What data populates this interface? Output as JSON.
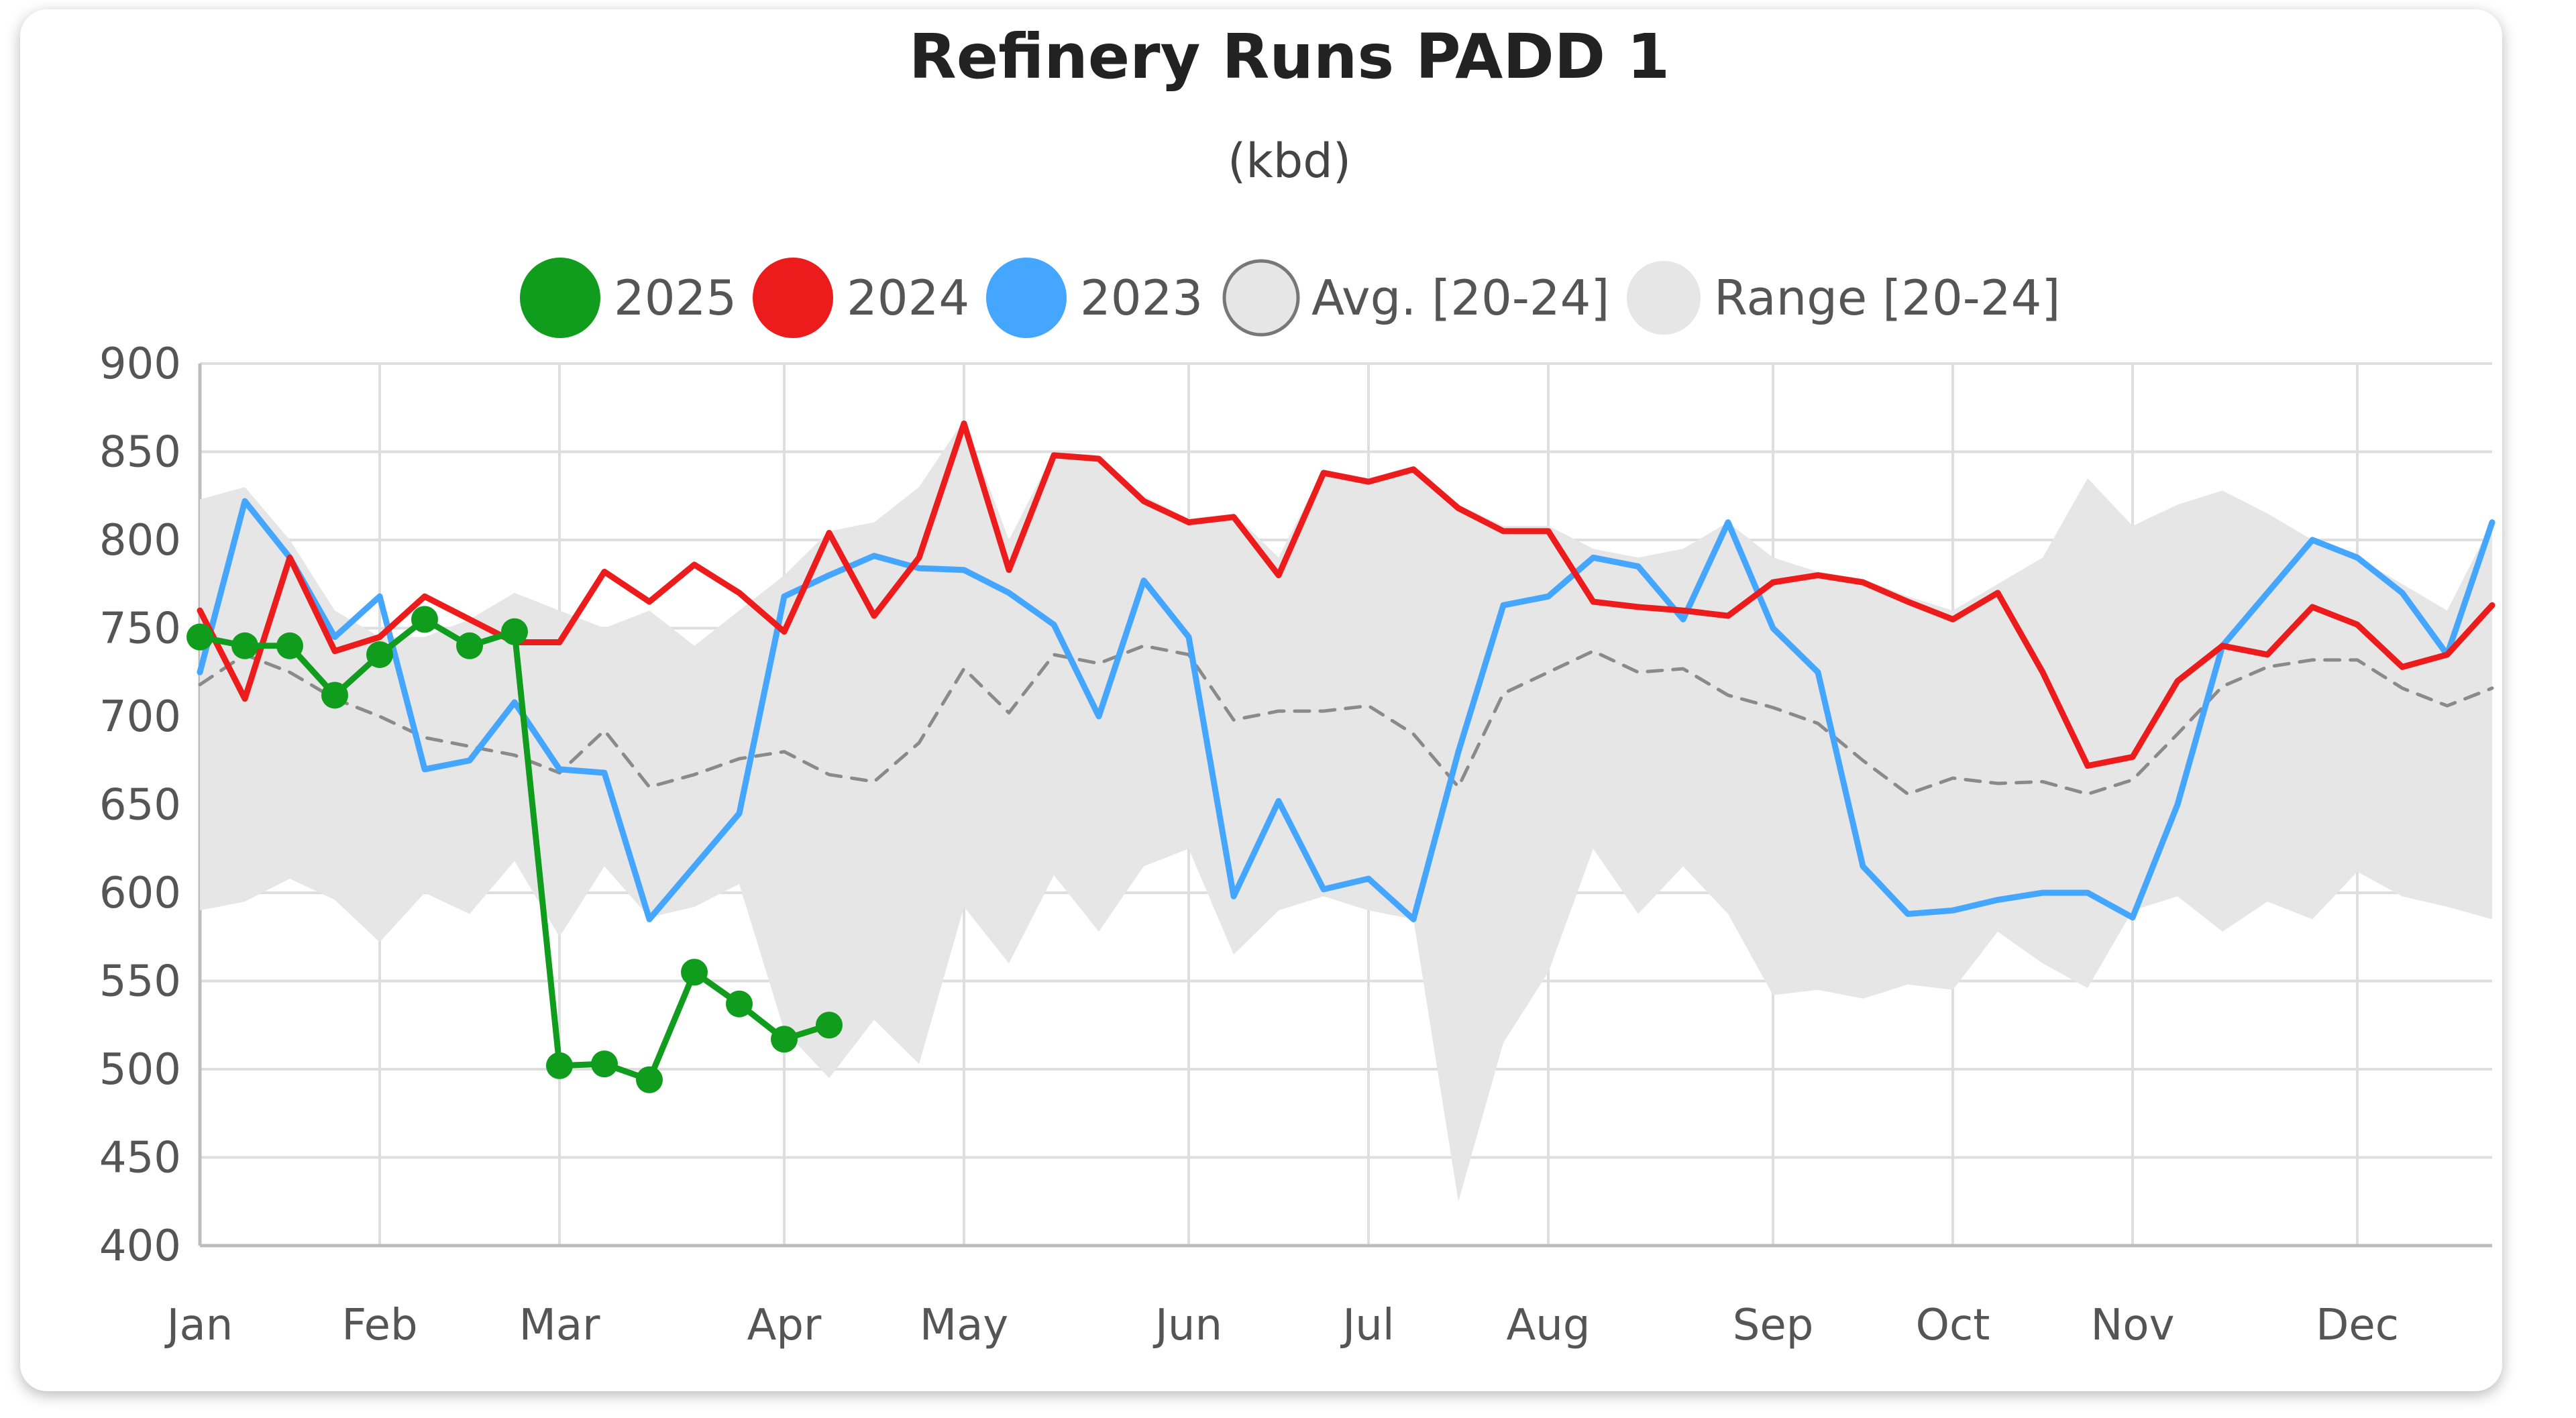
{
  "chart_data": {
    "type": "line",
    "title": "Refinery Runs PADD 1",
    "subtitle": "(kbd)",
    "xlabel": "",
    "ylabel": "",
    "ylim": [
      400,
      900
    ],
    "yticks": [
      900,
      850,
      800,
      750,
      700,
      650,
      600,
      550,
      500,
      450,
      400
    ],
    "xlim": [
      0,
      51
    ],
    "month_ticks": [
      {
        "label": "Jan",
        "week": 0
      },
      {
        "label": "Feb",
        "week": 4
      },
      {
        "label": "Mar",
        "week": 8
      },
      {
        "label": "Apr",
        "week": 13
      },
      {
        "label": "May",
        "week": 17
      },
      {
        "label": "Jun",
        "week": 22
      },
      {
        "label": "Jul",
        "week": 26
      },
      {
        "label": "Aug",
        "week": 30
      },
      {
        "label": "Sep",
        "week": 35
      },
      {
        "label": "Oct",
        "week": 39
      },
      {
        "label": "Nov",
        "week": 43
      },
      {
        "label": "Dec",
        "week": 48
      }
    ],
    "grid": true,
    "legend_position": "top",
    "legend": [
      {
        "name": "2025",
        "color": "#109c1c",
        "kind": "line"
      },
      {
        "name": "2024",
        "color": "#ec1c1c",
        "kind": "line"
      },
      {
        "name": "2023",
        "color": "#45a6ff",
        "kind": "line"
      },
      {
        "name": "Avg. [20-24]",
        "color": "#8a8a8a",
        "kind": "dashed"
      },
      {
        "name": "Range [20-24]",
        "color": "#e6e6e6",
        "kind": "area"
      }
    ],
    "series": [
      {
        "name": "2025",
        "color": "#109c1c",
        "markers": true,
        "values": [
          745,
          740,
          740,
          712,
          735,
          755,
          740,
          748,
          502,
          503,
          494,
          555,
          537,
          517,
          525
        ]
      },
      {
        "name": "2024",
        "color": "#ec1c1c",
        "markers": false,
        "values": [
          760,
          710,
          790,
          737,
          745,
          768,
          755,
          742,
          742,
          782,
          765,
          786,
          770,
          748,
          804,
          757,
          790,
          866,
          783,
          848,
          846,
          822,
          810,
          813,
          780,
          838,
          833,
          840,
          818,
          805,
          805,
          765,
          762,
          760,
          757,
          776,
          780,
          776,
          765,
          755,
          770,
          725,
          672,
          677,
          720,
          740,
          735,
          762,
          752,
          728,
          735,
          763
        ]
      },
      {
        "name": "2023",
        "color": "#45a6ff",
        "markers": false,
        "values": [
          725,
          822,
          790,
          745,
          768,
          670,
          675,
          708,
          670,
          668,
          585,
          615,
          645,
          768,
          780,
          791,
          784,
          783,
          770,
          752,
          700,
          777,
          745,
          598,
          652,
          602,
          608,
          585,
          680,
          763,
          768,
          790,
          785,
          755,
          810,
          750,
          725,
          615,
          588,
          590,
          596,
          600,
          600,
          586,
          650,
          740,
          770,
          800,
          790,
          770,
          735,
          810
        ]
      },
      {
        "name": "Avg. [20-24]",
        "color": "#8a8a8a",
        "dashed": true,
        "values": [
          718,
          735,
          725,
          710,
          700,
          688,
          683,
          678,
          668,
          692,
          660,
          667,
          676,
          680,
          667,
          663,
          685,
          727,
          702,
          735,
          730,
          740,
          735,
          698,
          703,
          703,
          706,
          690,
          660,
          713,
          725,
          737,
          725,
          727,
          712,
          705,
          696,
          675,
          656,
          665,
          662,
          663,
          656,
          664,
          690,
          717,
          728,
          732,
          732,
          716,
          706,
          716
        ]
      }
    ],
    "range": {
      "name": "Range [20-24]",
      "color": "#e6e6e6",
      "upper": [
        823,
        830,
        800,
        760,
        745,
        745,
        755,
        770,
        760,
        750,
        760,
        740,
        760,
        780,
        805,
        810,
        830,
        868,
        800,
        850,
        848,
        825,
        812,
        815,
        790,
        840,
        835,
        842,
        820,
        808,
        808,
        795,
        790,
        795,
        810,
        790,
        782,
        778,
        768,
        760,
        775,
        790,
        835,
        808,
        820,
        828,
        815,
        800,
        790,
        775,
        760,
        810
      ],
      "lower": [
        590,
        595,
        608,
        596,
        572,
        600,
        588,
        618,
        575,
        615,
        586,
        592,
        605,
        522,
        495,
        528,
        503,
        592,
        560,
        610,
        578,
        615,
        625,
        565,
        590,
        598,
        590,
        585,
        425,
        515,
        555,
        625,
        588,
        615,
        588,
        542,
        545,
        540,
        548,
        545,
        578,
        560,
        546,
        590,
        598,
        578,
        595,
        585,
        612,
        598,
        592,
        585
      ]
    }
  }
}
